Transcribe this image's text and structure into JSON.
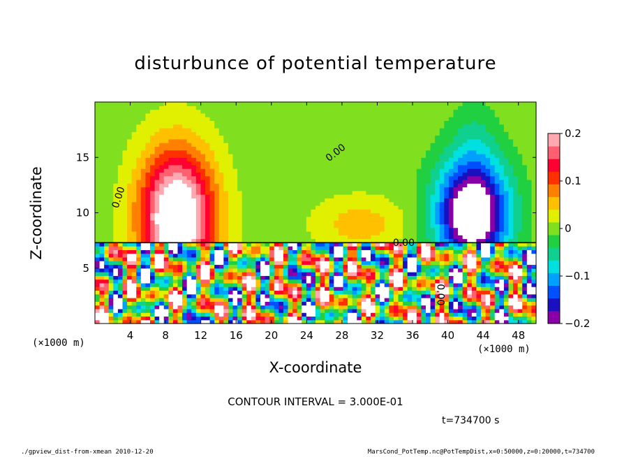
{
  "chart_data": {
    "type": "heatmap",
    "title": "disturbunce of potential temperature",
    "xlabel": "X-coordinate",
    "ylabel": "Z-coordinate",
    "x_unit_label": "(×1000 m)",
    "y_unit_label": "(×1000 m)",
    "xlim": [
      0,
      50
    ],
    "ylim": [
      0,
      20
    ],
    "x_ticks": [
      4,
      8,
      12,
      16,
      20,
      24,
      28,
      32,
      36,
      40,
      44,
      48
    ],
    "y_ticks": [
      5,
      10,
      15
    ],
    "colorbar": {
      "range": [
        -0.2,
        0.2
      ],
      "ticks": [
        0.2,
        0.1,
        0,
        -0.1,
        -0.2
      ],
      "tick_labels": [
        "0.2",
        "0.1",
        "0",
        "−0.1",
        "−0.2"
      ],
      "colors": [
        "#8a00a8",
        "#1a10c0",
        "#0050ff",
        "#00a0ff",
        "#00e0e0",
        "#10d090",
        "#20d040",
        "#80e020",
        "#e0f000",
        "#ffc000",
        "#ff8000",
        "#ff3000",
        "#ff0030",
        "#ff6070",
        "#ffa8b0"
      ]
    },
    "contour_labels": [
      {
        "text": "0.00",
        "x": 3,
        "y": 11.3,
        "angle": -72
      },
      {
        "text": "0.00",
        "x": 27.5,
        "y": 15.2,
        "angle": -38
      },
      {
        "text": "0.00",
        "x": 35,
        "y": 7.0,
        "angle": 0
      },
      {
        "text": "0.00",
        "x": 38.8,
        "y": 2.6,
        "angle": 90
      }
    ],
    "contour_interval_text": "CONTOUR INTERVAL = 3.000E-01",
    "time_text": "t=734700 s",
    "fields": {
      "upper_blobs": [
        {
          "x": 9.3,
          "z": 9.6,
          "sx": 4.2,
          "sz": 6.0,
          "amp": 0.27
        },
        {
          "x": 30.0,
          "z": 9.0,
          "sx": 5.0,
          "sz": 2.4,
          "amp": 0.055
        },
        {
          "x": 42.8,
          "z": 10.0,
          "sx": 4.0,
          "sz": 4.8,
          "amp": -0.27
        },
        {
          "x": 43.0,
          "z": 17.0,
          "sx": 2.5,
          "sz": 3.0,
          "amp": -0.03
        }
      ],
      "layer_top_z": 7.3
    }
  },
  "footer": {
    "left": "./gpview_dist-from-xmean 2010-12-20",
    "right": "MarsCond_PotTemp.nc@PotTempDist,x=0:50000,z=0:20000,t=734700"
  }
}
